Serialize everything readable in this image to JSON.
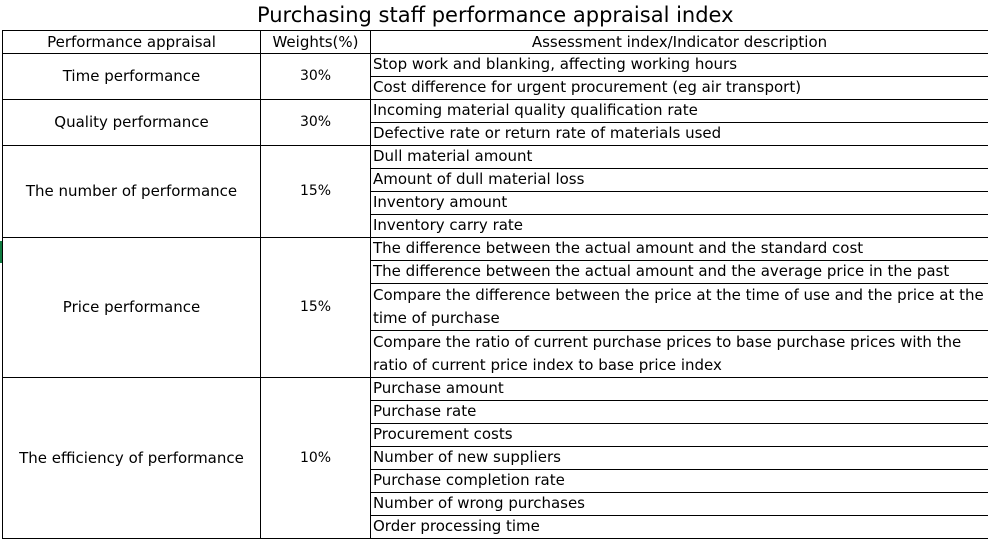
{
  "title": "Purchasing staff performance appraisal index",
  "headers": {
    "category": "Performance appraisal",
    "weight": "Weights(%)",
    "description": "Assessment index/Indicator description"
  },
  "groups": [
    {
      "category": "Time performance",
      "weight": "30%",
      "indicators": [
        "Stop work and blanking, affecting working hours",
        "Cost difference for urgent procurement (eg air transport)"
      ]
    },
    {
      "category": "Quality performance",
      "weight": "30%",
      "indicators": [
        "Incoming material quality qualification rate",
        "Defective rate or return rate of materials used"
      ]
    },
    {
      "category": "The number of performance",
      "weight": "15%",
      "indicators": [
        "Dull material amount",
        "Amount of dull material loss",
        "Inventory amount",
        "Inventory carry rate"
      ]
    },
    {
      "category": "Price performance",
      "weight": "15%",
      "indicators": [
        "The difference between the actual amount and the standard cost",
        "The difference between the actual amount and the average price in the past",
        "Compare the difference between the price at the time of use and the price at the time of purchase",
        "Compare the ratio of current purchase prices to base purchase prices with the ratio of current price index to base price index"
      ]
    },
    {
      "category": "The efficiency of performance",
      "weight": "10%",
      "indicators": [
        "Purchase amount",
        "Purchase rate",
        "Procurement costs",
        "Number of new suppliers",
        "Purchase completion rate",
        "Number of wrong purchases",
        "Order processing time"
      ]
    }
  ]
}
